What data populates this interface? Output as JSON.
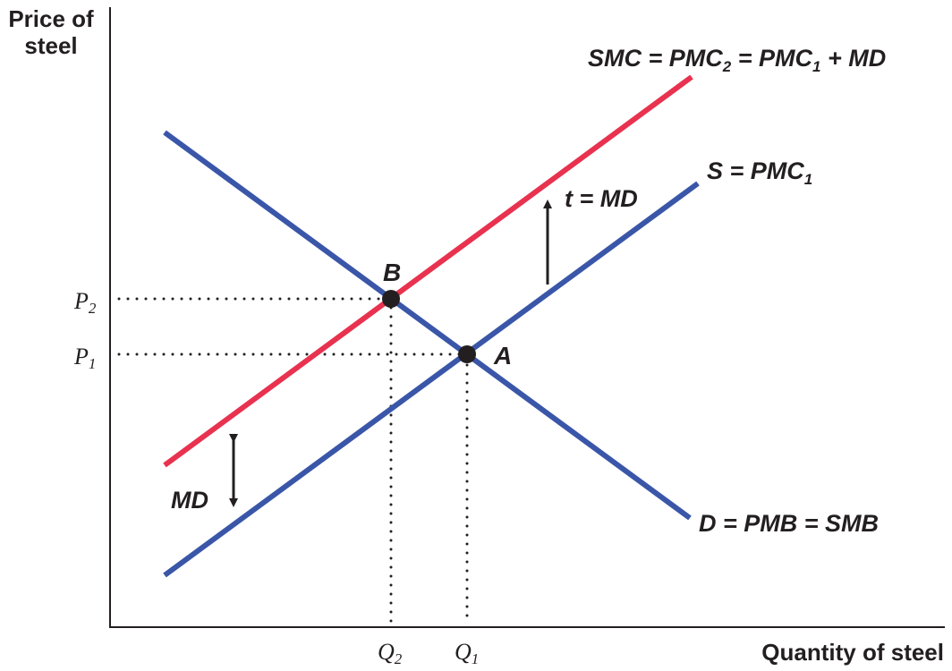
{
  "axes": {
    "y_label_line1": "Price of",
    "y_label_line2": "steel",
    "x_label": "Quantity of steel"
  },
  "ticks": {
    "p2": {
      "base": "P",
      "sub": "2"
    },
    "p1": {
      "base": "P",
      "sub": "1"
    },
    "q2": {
      "base": "Q",
      "sub": "2"
    },
    "q1": {
      "base": "Q",
      "sub": "1"
    }
  },
  "curves": {
    "smc": {
      "p1": "SMC = PMC",
      "s1": "2",
      "p2": " = PMC",
      "s2": "1",
      "p3": " + MD",
      "color": "#e8324f"
    },
    "supply": {
      "p1": "S = PMC",
      "s1": "1",
      "color": "#3a56a8"
    },
    "demand": {
      "label": "D = PMB = SMB",
      "color": "#3a56a8"
    }
  },
  "points": {
    "a": "A",
    "b": "B"
  },
  "annotations": {
    "tax": "t = MD",
    "md": "MD"
  },
  "colors": {
    "axis": "#231f20",
    "point": "#231f20"
  }
}
